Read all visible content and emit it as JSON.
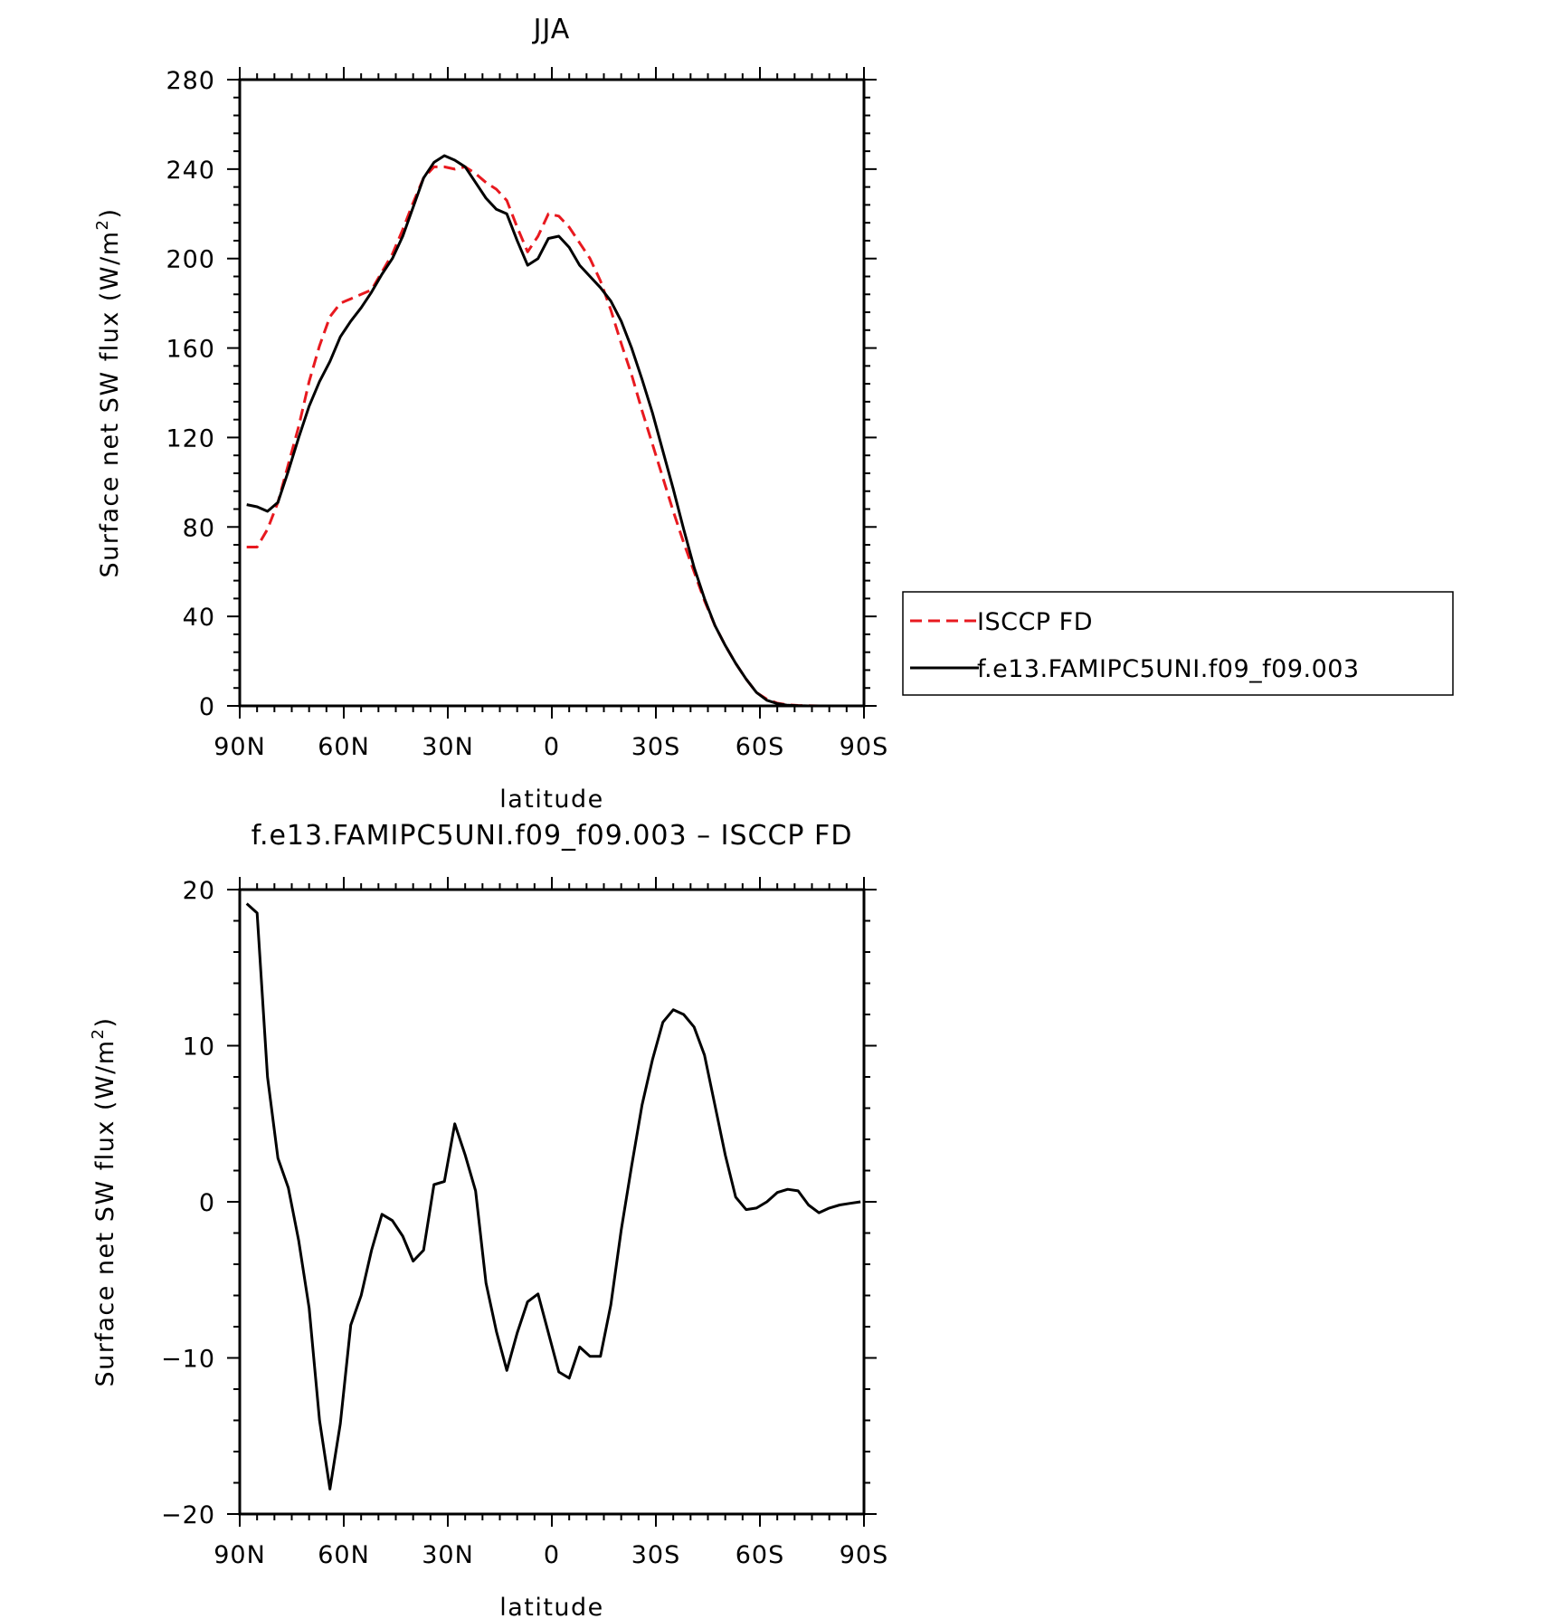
{
  "chart_data": [
    {
      "type": "line",
      "title": "JJA",
      "xlabel": "latitude",
      "ylabel": "Surface net SW flux (W/m",
      "ylabel_superscript": "2",
      "ylabel_close": ")",
      "xlim": [
        -90,
        90
      ],
      "ylim": [
        0,
        280
      ],
      "x_direction": "north-to-south",
      "x_ticks": [
        {
          "value": -90,
          "label": "90N"
        },
        {
          "value": -60,
          "label": "60N"
        },
        {
          "value": -30,
          "label": "30N"
        },
        {
          "value": 0,
          "label": "0"
        },
        {
          "value": 30,
          "label": "30S"
        },
        {
          "value": 60,
          "label": "60S"
        },
        {
          "value": 90,
          "label": "90S"
        }
      ],
      "y_ticks": [
        {
          "value": 0,
          "label": "0"
        },
        {
          "value": 40,
          "label": "40"
        },
        {
          "value": 80,
          "label": "80"
        },
        {
          "value": 120,
          "label": "120"
        },
        {
          "value": 160,
          "label": "160"
        },
        {
          "value": 200,
          "label": "200"
        },
        {
          "value": 240,
          "label": "240"
        },
        {
          "value": 280,
          "label": "280"
        }
      ],
      "grid": false,
      "legend_position": "right",
      "series": [
        {
          "name": "ISCCP FD",
          "color": "#e8191f",
          "dash": true,
          "points": [
            [
              -88,
              71
            ],
            [
              -85,
              71
            ],
            [
              -82,
              79
            ],
            [
              -79,
              91
            ],
            [
              -76,
              108
            ],
            [
              -73,
              125
            ],
            [
              -70,
              145
            ],
            [
              -67,
              161
            ],
            [
              -64,
              174
            ],
            [
              -61,
              180
            ],
            [
              -58,
              182
            ],
            [
              -55,
              184
            ],
            [
              -52,
              186
            ],
            [
              -49,
              194
            ],
            [
              -46,
              202
            ],
            [
              -43,
              213
            ],
            [
              -40,
              225
            ],
            [
              -37,
              236
            ],
            [
              -34,
              241
            ],
            [
              -31,
              241
            ],
            [
              -28,
              240
            ],
            [
              -25,
              241
            ],
            [
              -22,
              238
            ],
            [
              -19,
              234
            ],
            [
              -16,
              231
            ],
            [
              -13,
              226
            ],
            [
              -10,
              214
            ],
            [
              -7,
              203
            ],
            [
              -4,
              210
            ],
            [
              -1,
              220
            ],
            [
              2,
              219
            ],
            [
              5,
              214
            ],
            [
              8,
              207
            ],
            [
              11,
              200
            ],
            [
              14,
              190
            ],
            [
              17,
              177
            ],
            [
              20,
              162
            ],
            [
              23,
              148
            ],
            [
              26,
              132
            ],
            [
              29,
              117
            ],
            [
              32,
              102
            ],
            [
              35,
              87
            ],
            [
              38,
              73
            ],
            [
              41,
              60
            ],
            [
              44,
              47
            ],
            [
              47,
              36
            ],
            [
              50,
              27
            ],
            [
              53,
              19
            ],
            [
              56,
              12
            ],
            [
              59,
              6
            ],
            [
              62,
              3
            ],
            [
              65,
              1.2
            ],
            [
              68,
              0.5
            ],
            [
              71,
              0.2
            ],
            [
              74,
              0.1
            ],
            [
              77,
              0
            ],
            [
              80,
              0
            ],
            [
              83,
              0
            ],
            [
              86,
              0
            ],
            [
              89,
              0
            ]
          ]
        },
        {
          "name": "f.e13.FAMIPC5UNI.f09_f09.003",
          "color": "#000000",
          "dash": false,
          "points": [
            [
              -88,
              90
            ],
            [
              -85,
              89
            ],
            [
              -82,
              87
            ],
            [
              -79,
              91
            ],
            [
              -76,
              105
            ],
            [
              -73,
              120
            ],
            [
              -70,
              134
            ],
            [
              -67,
              145
            ],
            [
              -64,
              154
            ],
            [
              -61,
              165
            ],
            [
              -58,
              172
            ],
            [
              -55,
              178
            ],
            [
              -52,
              185
            ],
            [
              -49,
              193
            ],
            [
              -46,
              200
            ],
            [
              -43,
              210
            ],
            [
              -40,
              223
            ],
            [
              -37,
              236
            ],
            [
              -34,
              243
            ],
            [
              -31,
              246
            ],
            [
              -28,
              244
            ],
            [
              -25,
              241
            ],
            [
              -22,
              234
            ],
            [
              -19,
              227
            ],
            [
              -16,
              222
            ],
            [
              -13,
              220
            ],
            [
              -10,
              208
            ],
            [
              -7,
              197
            ],
            [
              -4,
              200
            ],
            [
              -1,
              209
            ],
            [
              2,
              210
            ],
            [
              5,
              205
            ],
            [
              8,
              197
            ],
            [
              11,
              192
            ],
            [
              14,
              187
            ],
            [
              17,
              181
            ],
            [
              20,
              172
            ],
            [
              23,
              160
            ],
            [
              26,
              146
            ],
            [
              29,
              131
            ],
            [
              32,
              114
            ],
            [
              35,
              97
            ],
            [
              38,
              79
            ],
            [
              41,
              62
            ],
            [
              44,
              48
            ],
            [
              47,
              36
            ],
            [
              50,
              27
            ],
            [
              53,
              19
            ],
            [
              56,
              12
            ],
            [
              59,
              6
            ],
            [
              62,
              2.5
            ],
            [
              65,
              1
            ],
            [
              68,
              0.3
            ],
            [
              71,
              0.1
            ],
            [
              74,
              0
            ],
            [
              77,
              0
            ],
            [
              80,
              0
            ],
            [
              83,
              0
            ],
            [
              86,
              0
            ],
            [
              89,
              0
            ]
          ]
        }
      ]
    },
    {
      "type": "line",
      "title": "f.e13.FAMIPC5UNI.f09_f09.003 – ISCCP FD",
      "xlabel": "latitude",
      "ylabel": "Surface net SW flux (W/m",
      "ylabel_superscript": "2",
      "ylabel_close": ")",
      "xlim": [
        -90,
        90
      ],
      "ylim": [
        -20,
        20
      ],
      "x_direction": "north-to-south",
      "x_ticks": [
        {
          "value": -90,
          "label": "90N"
        },
        {
          "value": -60,
          "label": "60N"
        },
        {
          "value": -30,
          "label": "30N"
        },
        {
          "value": 0,
          "label": "0"
        },
        {
          "value": 30,
          "label": "30S"
        },
        {
          "value": 60,
          "label": "60S"
        },
        {
          "value": 90,
          "label": "90S"
        }
      ],
      "y_ticks": [
        {
          "value": -20,
          "label": "−20"
        },
        {
          "value": -10,
          "label": "−10"
        },
        {
          "value": 0,
          "label": "0"
        },
        {
          "value": 10,
          "label": "10"
        },
        {
          "value": 20,
          "label": "20"
        }
      ],
      "grid": false,
      "series": [
        {
          "color": "#000000",
          "dash": false,
          "points": [
            [
              -88,
              19.1
            ],
            [
              -85,
              18.5
            ],
            [
              -82,
              8
            ],
            [
              -79,
              2.8
            ],
            [
              -76,
              0.9
            ],
            [
              -73,
              -2.5
            ],
            [
              -70,
              -6.8
            ],
            [
              -67,
              -14
            ],
            [
              -64,
              -18.4
            ],
            [
              -61,
              -14.2
            ],
            [
              -58,
              -7.9
            ],
            [
              -55,
              -6
            ],
            [
              -52,
              -3.1
            ],
            [
              -49,
              -0.8
            ],
            [
              -46,
              -1.2
            ],
            [
              -43,
              -2.2
            ],
            [
              -40,
              -3.8
            ],
            [
              -37,
              -3.1
            ],
            [
              -34,
              1.1
            ],
            [
              -31,
              1.3
            ],
            [
              -28,
              5
            ],
            [
              -25,
              3
            ],
            [
              -22,
              0.7
            ],
            [
              -19,
              -5.2
            ],
            [
              -16,
              -8.3
            ],
            [
              -13,
              -10.8
            ],
            [
              -10,
              -8.4
            ],
            [
              -7,
              -6.4
            ],
            [
              -4,
              -5.9
            ],
            [
              -1,
              -8.4
            ],
            [
              2,
              -10.9
            ],
            [
              5,
              -11.3
            ],
            [
              8,
              -9.3
            ],
            [
              11,
              -9.9
            ],
            [
              14,
              -9.9
            ],
            [
              17,
              -6.6
            ],
            [
              20,
              -1.8
            ],
            [
              23,
              2.3
            ],
            [
              26,
              6.2
            ],
            [
              29,
              9.1
            ],
            [
              32,
              11.5
            ],
            [
              35,
              12.3
            ],
            [
              38,
              12
            ],
            [
              41,
              11.2
            ],
            [
              44,
              9.4
            ],
            [
              47,
              6.2
            ],
            [
              50,
              3
            ],
            [
              53,
              0.3
            ],
            [
              56,
              -0.5
            ],
            [
              59,
              -0.4
            ],
            [
              62,
              0
            ],
            [
              65,
              0.6
            ],
            [
              68,
              0.8
            ],
            [
              71,
              0.7
            ],
            [
              74,
              -0.2
            ],
            [
              77,
              -0.7
            ],
            [
              80,
              -0.4
            ],
            [
              83,
              -0.2
            ],
            [
              86,
              -0.1
            ],
            [
              89,
              0
            ]
          ]
        }
      ]
    }
  ]
}
